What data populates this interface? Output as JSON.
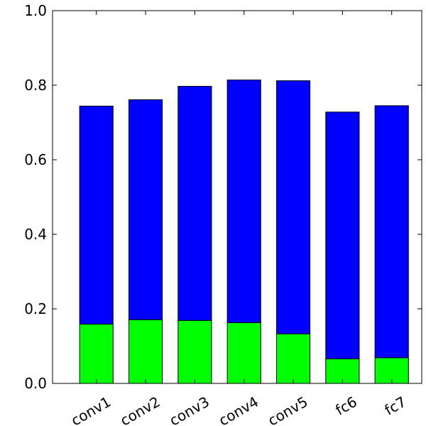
{
  "chart_data": {
    "type": "bar",
    "stacked": true,
    "categories": [
      "conv1",
      "conv2",
      "conv3",
      "conv4",
      "conv5",
      "fc6",
      "fc7"
    ],
    "series": [
      {
        "color": "#00ff00",
        "values": [
          0.159,
          0.171,
          0.169,
          0.163,
          0.133,
          0.066,
          0.069
        ]
      },
      {
        "color": "#0000ff",
        "values": [
          0.585,
          0.59,
          0.628,
          0.651,
          0.679,
          0.662,
          0.676
        ]
      }
    ],
    "ylim": [
      0,
      1.0
    ],
    "yticks": [
      "0.0",
      "0.2",
      "0.4",
      "0.6",
      "0.8",
      "1.0"
    ],
    "ytick_values": [
      0,
      0.2,
      0.4,
      0.6,
      0.8,
      1.0
    ],
    "grid": false,
    "title": "",
    "xlabel": "",
    "ylabel": ""
  }
}
